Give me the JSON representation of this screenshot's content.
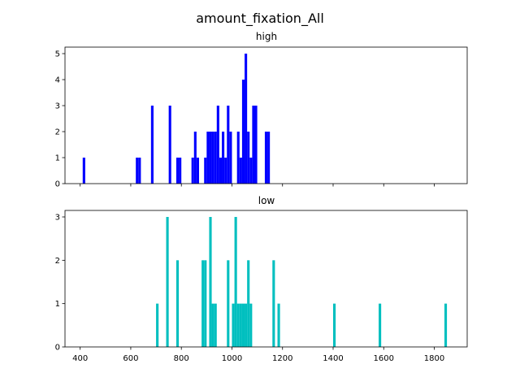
{
  "figure_title": "amount_fixation_All",
  "chart_data": [
    {
      "type": "histogram",
      "title": "high",
      "color": "#0000ff",
      "xlim": [
        340,
        1930
      ],
      "ylim": [
        0,
        5.25
      ],
      "xticks": [
        400,
        600,
        800,
        1000,
        1200,
        1400,
        1600,
        1800
      ],
      "yticks": [
        0,
        1,
        2,
        3,
        4,
        5
      ],
      "show_xtick_labels": false,
      "bins": [
        {
          "x": 410,
          "count": 1
        },
        {
          "x": 620,
          "count": 1
        },
        {
          "x": 630,
          "count": 1
        },
        {
          "x": 680,
          "count": 3
        },
        {
          "x": 750,
          "count": 3
        },
        {
          "x": 780,
          "count": 1
        },
        {
          "x": 790,
          "count": 1
        },
        {
          "x": 840,
          "count": 1
        },
        {
          "x": 850,
          "count": 2
        },
        {
          "x": 860,
          "count": 1
        },
        {
          "x": 890,
          "count": 1
        },
        {
          "x": 900,
          "count": 2
        },
        {
          "x": 910,
          "count": 2
        },
        {
          "x": 920,
          "count": 2
        },
        {
          "x": 930,
          "count": 2
        },
        {
          "x": 940,
          "count": 3
        },
        {
          "x": 950,
          "count": 1
        },
        {
          "x": 960,
          "count": 2
        },
        {
          "x": 970,
          "count": 1
        },
        {
          "x": 980,
          "count": 3
        },
        {
          "x": 990,
          "count": 2
        },
        {
          "x": 1020,
          "count": 2
        },
        {
          "x": 1030,
          "count": 1
        },
        {
          "x": 1040,
          "count": 4
        },
        {
          "x": 1050,
          "count": 5
        },
        {
          "x": 1060,
          "count": 2
        },
        {
          "x": 1070,
          "count": 1
        },
        {
          "x": 1080,
          "count": 3
        },
        {
          "x": 1090,
          "count": 3
        },
        {
          "x": 1130,
          "count": 2
        },
        {
          "x": 1140,
          "count": 2
        }
      ]
    },
    {
      "type": "histogram",
      "title": "low",
      "color": "#00bfbf",
      "xlim": [
        340,
        1930
      ],
      "ylim": [
        0,
        3.15
      ],
      "xticks": [
        400,
        600,
        800,
        1000,
        1200,
        1400,
        1600,
        1800
      ],
      "yticks": [
        0,
        1,
        2,
        3
      ],
      "show_xtick_labels": true,
      "bins": [
        {
          "x": 700,
          "count": 1
        },
        {
          "x": 740,
          "count": 3
        },
        {
          "x": 780,
          "count": 2
        },
        {
          "x": 880,
          "count": 2
        },
        {
          "x": 890,
          "count": 2
        },
        {
          "x": 910,
          "count": 3
        },
        {
          "x": 920,
          "count": 1
        },
        {
          "x": 930,
          "count": 1
        },
        {
          "x": 980,
          "count": 2
        },
        {
          "x": 1000,
          "count": 1
        },
        {
          "x": 1010,
          "count": 3
        },
        {
          "x": 1020,
          "count": 1
        },
        {
          "x": 1030,
          "count": 1
        },
        {
          "x": 1040,
          "count": 1
        },
        {
          "x": 1050,
          "count": 1
        },
        {
          "x": 1060,
          "count": 2
        },
        {
          "x": 1070,
          "count": 1
        },
        {
          "x": 1160,
          "count": 2
        },
        {
          "x": 1180,
          "count": 1
        },
        {
          "x": 1400,
          "count": 1
        },
        {
          "x": 1580,
          "count": 1
        },
        {
          "x": 1840,
          "count": 1
        }
      ]
    }
  ]
}
